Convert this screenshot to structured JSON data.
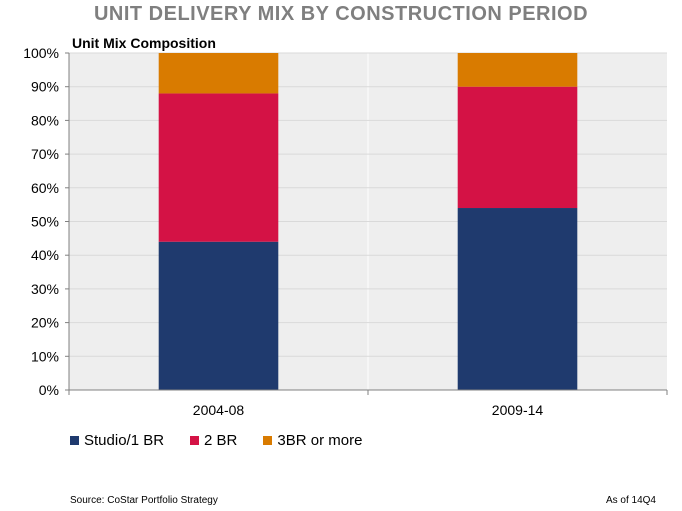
{
  "title": "UNIT DELIVERY  MIX BY CONSTRUCTION PERIOD",
  "chart_data": {
    "type": "bar",
    "stacked": true,
    "subtitle": "Unit Mix Composition",
    "categories": [
      "2004-08",
      "2009-14"
    ],
    "series": [
      {
        "name": "Studio/1 BR",
        "color": "#1f3a6e",
        "values": [
          44,
          54
        ]
      },
      {
        "name": "2 BR",
        "color": "#d41245",
        "values": [
          44,
          36
        ]
      },
      {
        "name": "3BR or more",
        "color": "#d97b00",
        "values": [
          12,
          10
        ]
      }
    ],
    "ylim": [
      0,
      100
    ],
    "yticks": [
      "0%",
      "10%",
      "20%",
      "30%",
      "40%",
      "50%",
      "60%",
      "70%",
      "80%",
      "90%",
      "100%"
    ],
    "grid": true,
    "legend_position": "bottom-left"
  },
  "footer": {
    "source": "Source: CoStar Portfolio Strategy",
    "as_of": "As of 14Q4"
  }
}
